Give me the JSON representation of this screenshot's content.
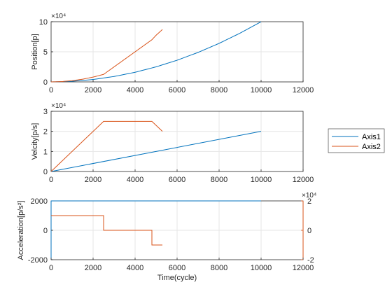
{
  "colors": {
    "axis1": "#0072BD",
    "axis2": "#D95319",
    "axes": "#262626",
    "grid": "#e6e6e6"
  },
  "chart_data": [
    {
      "type": "line",
      "ylabel": "Position[p]",
      "xlabel": "",
      "xlim": [
        0,
        12000
      ],
      "ylim": [
        0,
        100000
      ],
      "xticks": [
        "0",
        "2000",
        "4000",
        "6000",
        "8000",
        "10000",
        "12000"
      ],
      "yticks": [
        "0",
        "5",
        "10"
      ],
      "exponent": "×10⁴",
      "grid": true,
      "series": [
        {
          "name": "Axis1",
          "x": [
            0,
            1000,
            2000,
            3000,
            4000,
            5000,
            6000,
            7000,
            8000,
            9000,
            10000
          ],
          "y": [
            0,
            1000,
            4000,
            9000,
            16000,
            25000,
            36000,
            49000,
            64000,
            81000,
            100000
          ]
        },
        {
          "name": "Axis2",
          "x": [
            0,
            500,
            1000,
            1500,
            2000,
            2500,
            3000,
            3500,
            4000,
            4500,
            4800,
            5000,
            5300
          ],
          "y": [
            0,
            500,
            2000,
            4500,
            8000,
            12500,
            25000,
            37500,
            50000,
            62500,
            70000,
            77500,
            87000
          ]
        }
      ]
    },
    {
      "type": "line",
      "ylabel": "Velcity[p/s]",
      "xlabel": "",
      "xlim": [
        0,
        12000
      ],
      "ylim": [
        0,
        30000
      ],
      "xticks": [
        "0",
        "2000",
        "4000",
        "6000",
        "8000",
        "10000",
        "12000"
      ],
      "yticks": [
        "0",
        "1",
        "2",
        "3"
      ],
      "exponent": "×10⁴",
      "grid": true,
      "legend": {
        "placement": "right",
        "entries": [
          "Axis1",
          "Axis2"
        ]
      },
      "series": [
        {
          "name": "Axis1",
          "x": [
            0,
            10000
          ],
          "y": [
            0,
            20000
          ]
        },
        {
          "name": "Axis2",
          "x": [
            0,
            2500,
            4800,
            5300
          ],
          "y": [
            0,
            25000,
            25000,
            20000
          ]
        }
      ]
    },
    {
      "type": "line",
      "ylabel": "Acceleration[p/s²]",
      "xlabel": "Time(cycle)",
      "xlim": [
        0,
        12000
      ],
      "ylim": [
        -2000,
        2000
      ],
      "ylim_right": [
        -2,
        2
      ],
      "xticks": [
        "0",
        "2000",
        "4000",
        "6000",
        "8000",
        "10000",
        "12000"
      ],
      "yticks": [
        "-2000",
        "0",
        "2000"
      ],
      "yticks_right": [
        "-2",
        "0",
        "2"
      ],
      "exponent_right": "×10⁴",
      "grid": true,
      "series": [
        {
          "name": "Axis1",
          "axis": "left",
          "x": [
            0,
            10000
          ],
          "y": [
            2000,
            2000
          ]
        },
        {
          "name": "Axis2",
          "axis": "right",
          "x": [
            0,
            2500,
            2500,
            4800,
            4800,
            5300
          ],
          "y": [
            1,
            1,
            0,
            0,
            -1,
            -1
          ]
        }
      ]
    }
  ]
}
